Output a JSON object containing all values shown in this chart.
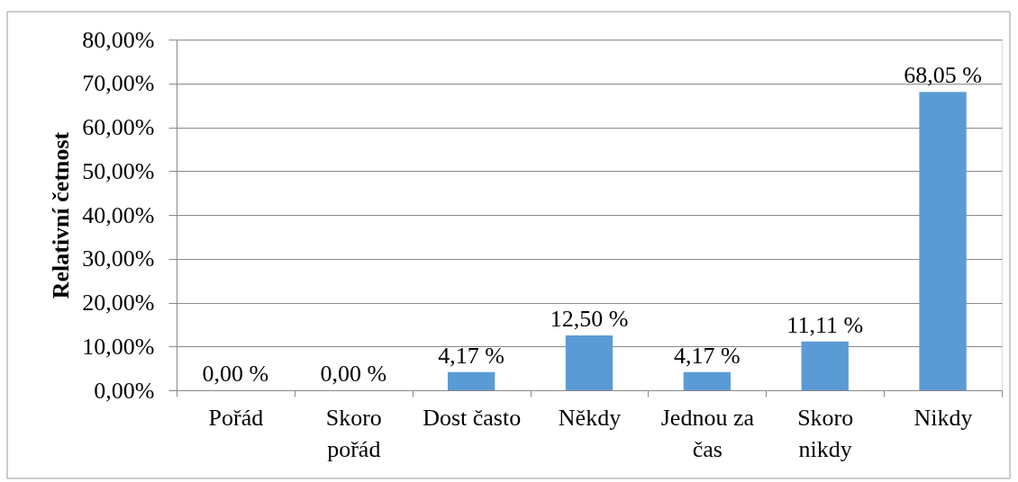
{
  "chart_data": {
    "type": "bar",
    "ylabel": "Relativní četnost",
    "categories": [
      "Pořád",
      "Skoro pořád",
      "Dost často",
      "Někdy",
      "Jednou za čas",
      "Skoro nikdy",
      "Nikdy"
    ],
    "values": [
      0,
      0,
      4.17,
      12.5,
      4.17,
      11.11,
      68.05
    ],
    "color": "#5b9bd5",
    "value_labels": [
      "0,00 %",
      "0,00 %",
      "4,17 %",
      "12,50 %",
      "4,17 %",
      "11,11 %",
      "68,05 %"
    ],
    "ylim": [
      0,
      80
    ],
    "yticks": [
      {
        "value": 0,
        "label": "0,00%"
      },
      {
        "value": 10,
        "label": "10,00%"
      },
      {
        "value": 20,
        "label": "20,00%"
      },
      {
        "value": 30,
        "label": "30,00%"
      },
      {
        "value": 40,
        "label": "40,00%"
      },
      {
        "value": 50,
        "label": "50,00%"
      },
      {
        "value": 60,
        "label": "60,00%"
      },
      {
        "value": 70,
        "label": "70,00%"
      },
      {
        "value": 80,
        "label": "80,00%"
      }
    ],
    "grid": "y"
  }
}
